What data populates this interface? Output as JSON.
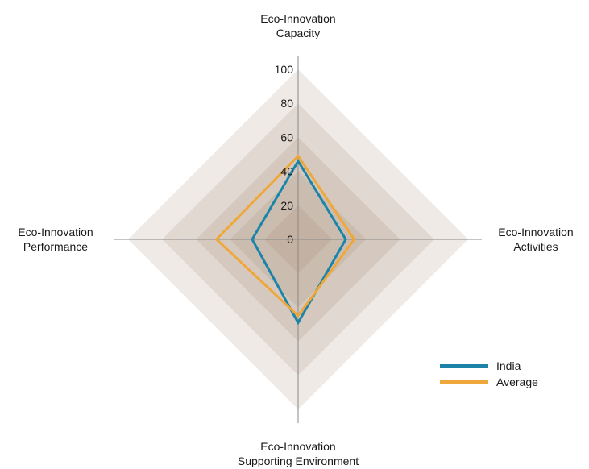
{
  "chart_data": {
    "type": "radar",
    "axes": [
      {
        "line1": "Eco-Innovation",
        "line2": "Capacity"
      },
      {
        "line1": "Eco-Innovation",
        "line2": "Activities"
      },
      {
        "line1": "Eco-Innovation",
        "line2": "Supporting Environment"
      },
      {
        "line1": "Eco-Innovation",
        "line2": "Performance"
      }
    ],
    "rlim": [
      0,
      100
    ],
    "ticks": [
      "0",
      "20",
      "40",
      "60",
      "80",
      "100"
    ],
    "series": [
      {
        "name": "India",
        "color": "#1b84a8",
        "values": [
          46,
          28,
          49,
          27
        ]
      },
      {
        "name": "Average",
        "color": "#f0a73a",
        "values": [
          49,
          33,
          45,
          48
        ]
      }
    ],
    "band_color": "#9c7a61",
    "legend_position": "bottom-right"
  }
}
